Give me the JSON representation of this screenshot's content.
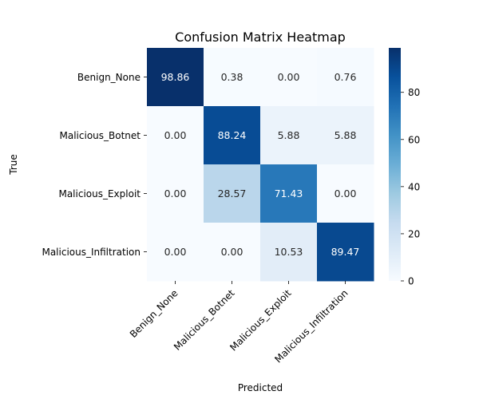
{
  "chart_data": {
    "type": "heatmap",
    "title": "Confusion Matrix Heatmap",
    "xlabel": "Predicted",
    "ylabel": "True",
    "x_categories": [
      "Benign_None",
      "Malicious_Botnet",
      "Malicious_Exploit",
      "Malicious_Infiltration"
    ],
    "y_categories": [
      "Benign_None",
      "Malicious_Botnet",
      "Malicious_Exploit",
      "Malicious_Infiltration"
    ],
    "values": [
      [
        98.86,
        0.38,
        0.0,
        0.76
      ],
      [
        0.0,
        88.24,
        5.88,
        5.88
      ],
      [
        0.0,
        28.57,
        71.43,
        0.0
      ],
      [
        0.0,
        0.0,
        10.53,
        89.47
      ]
    ],
    "value_labels": [
      [
        "98.86",
        "0.38",
        "0.00",
        "0.76"
      ],
      [
        "0.00",
        "88.24",
        "5.88",
        "5.88"
      ],
      [
        "0.00",
        "28.57",
        "71.43",
        "0.00"
      ],
      [
        "0.00",
        "0.00",
        "10.53",
        "89.47"
      ]
    ],
    "colormap": "Blues",
    "colorbar": {
      "range": [
        0,
        98.86
      ],
      "ticks": [
        0,
        20,
        40,
        60,
        80
      ],
      "tick_labels": [
        "0",
        "20",
        "40",
        "60",
        "80"
      ]
    },
    "grid": false
  }
}
